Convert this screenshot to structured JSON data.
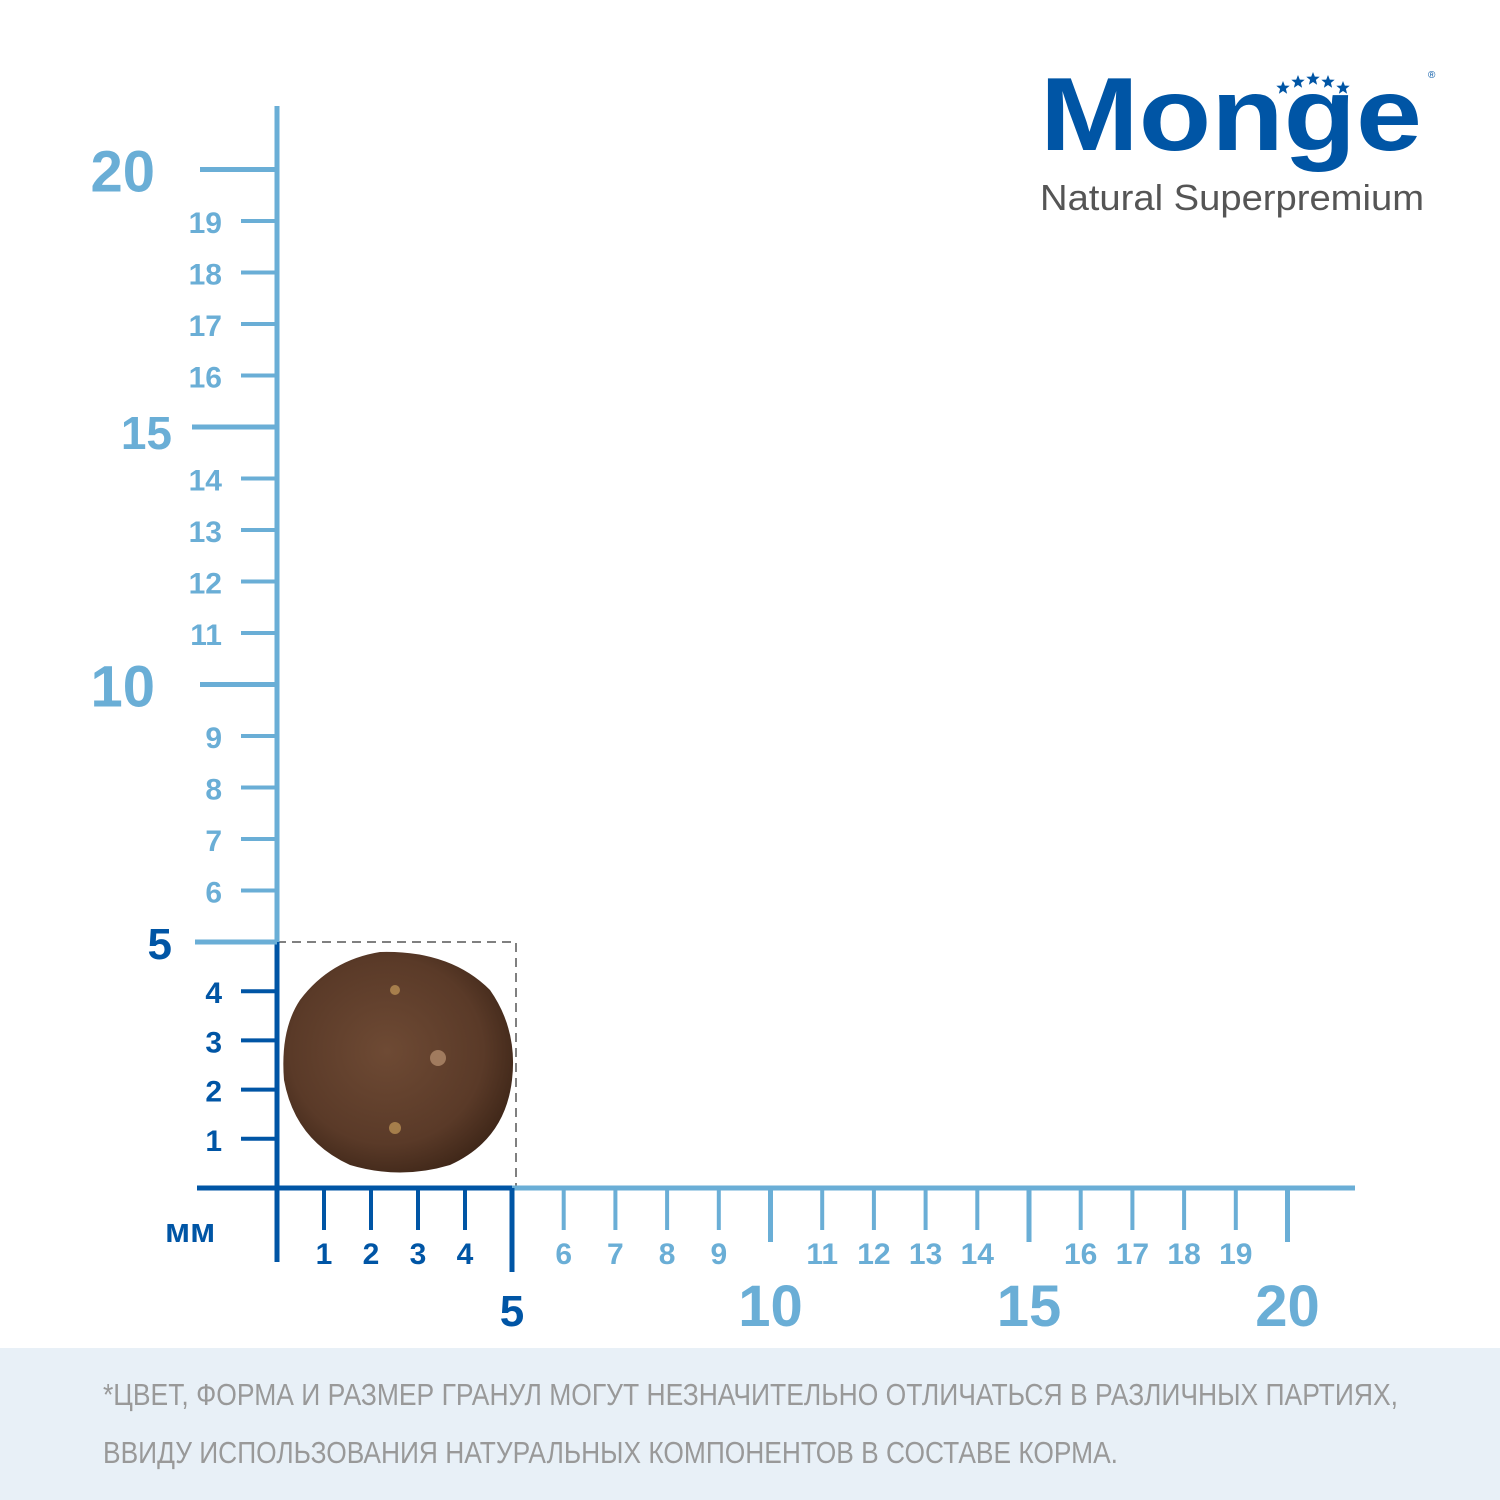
{
  "logo": {
    "brand": "Monge",
    "tagline": "Natural Superpremium",
    "registered": "®"
  },
  "ruler": {
    "unit_label": "мм",
    "granule_size_mm": 5,
    "colors": {
      "primary": "#0055a5",
      "secondary": "#6aaed6",
      "granule": "#5a3a28",
      "dashed_box": "#808080"
    },
    "x_minor_labels": [
      "1",
      "2",
      "3",
      "4",
      "6",
      "7",
      "8",
      "9",
      "11",
      "12",
      "13",
      "14",
      "16",
      "17",
      "18",
      "19"
    ],
    "x_major_labels": [
      "5",
      "10",
      "15",
      "20"
    ],
    "y_minor_labels": [
      "1",
      "2",
      "3",
      "4",
      "6",
      "7",
      "8",
      "9",
      "11",
      "12",
      "13",
      "14",
      "16",
      "17",
      "18",
      "19"
    ],
    "y_major_labels": [
      "5",
      "10",
      "15",
      "20"
    ]
  },
  "footer": {
    "line1": "*ЦВЕТ, ФОРМА И РАЗМЕР ГРАНУЛ МОГУТ НЕЗНАЧИТЕЛЬНО ОТЛИЧАТЬСЯ В РАЗЛИЧНЫХ ПАРТИЯХ,",
    "line2": "ВВИДУ ИСПОЛЬЗОВАНИЯ НАТУРАЛЬНЫХ КОМПОНЕНТОВ В СОСТАВЕ КОРМА.",
    "background": "#e8f0f7"
  }
}
